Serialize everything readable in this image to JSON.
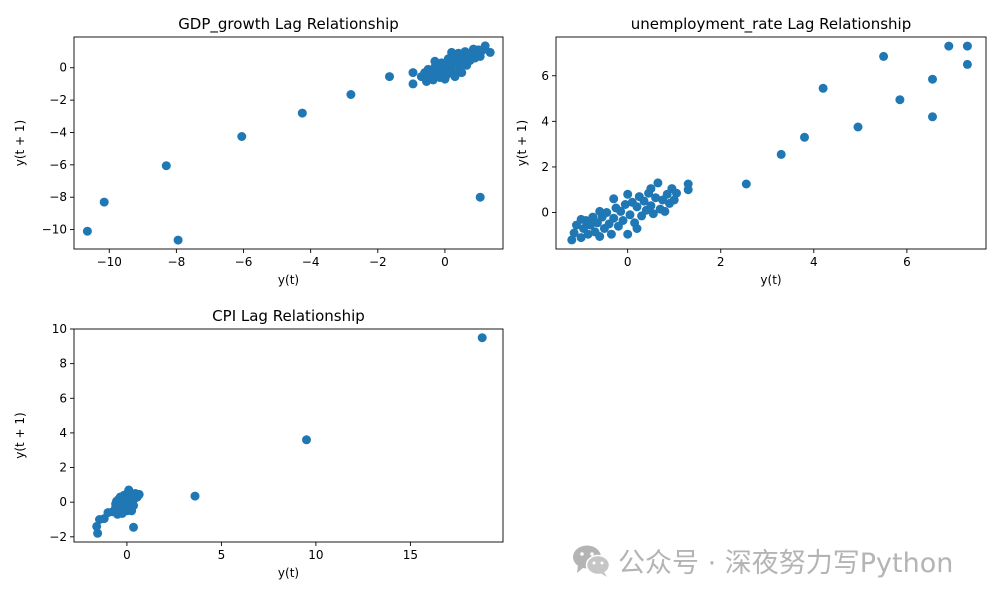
{
  "chart_data": [
    {
      "type": "scatter",
      "title": "GDP_growth Lag Relationship",
      "xlabel": "y(t)",
      "ylabel": "y(t + 1)",
      "xlim": [
        -11.05,
        1.73
      ],
      "ylim": [
        -11.2,
        1.9
      ],
      "xticks": [
        -10,
        -8,
        -6,
        -4,
        -2,
        0
      ],
      "yticks": [
        -10,
        -8,
        -6,
        -4,
        -2,
        0
      ],
      "marker_color": "#1f77b4",
      "points": [
        [
          -10.65,
          -10.1
        ],
        [
          -10.15,
          -8.3
        ],
        [
          -8.3,
          -6.05
        ],
        [
          -7.95,
          -10.65
        ],
        [
          -6.05,
          -4.25
        ],
        [
          -4.25,
          -2.8
        ],
        [
          -2.8,
          -1.65
        ],
        [
          -1.65,
          -0.55
        ],
        [
          -0.95,
          -1.0
        ],
        [
          -0.95,
          -0.3
        ],
        [
          1.05,
          -8.0
        ],
        [
          1.35,
          0.95
        ],
        [
          1.2,
          1.35
        ],
        [
          1.0,
          1.1
        ],
        [
          0.85,
          1.15
        ],
        [
          -0.7,
          -0.55
        ],
        [
          -0.6,
          -0.3
        ],
        [
          -0.55,
          -0.85
        ],
        [
          -0.5,
          -0.1
        ],
        [
          -0.45,
          -0.6
        ],
        [
          -0.4,
          -0.2
        ],
        [
          -0.35,
          -0.75
        ],
        [
          -0.3,
          0.05
        ],
        [
          -0.25,
          -0.4
        ],
        [
          -0.2,
          -0.05
        ],
        [
          -0.15,
          -0.6
        ],
        [
          -0.1,
          0.3
        ],
        [
          -0.05,
          -0.25
        ],
        [
          0.0,
          0.15
        ],
        [
          0.05,
          -0.45
        ],
        [
          0.1,
          0.55
        ],
        [
          0.15,
          0.05
        ],
        [
          0.2,
          -0.2
        ],
        [
          0.25,
          0.45
        ],
        [
          0.3,
          0.7
        ],
        [
          0.35,
          0.2
        ],
        [
          0.4,
          0.9
        ],
        [
          0.45,
          -0.15
        ],
        [
          0.5,
          0.6
        ],
        [
          0.55,
          0.35
        ],
        [
          0.6,
          1.0
        ],
        [
          0.65,
          0.15
        ],
        [
          0.7,
          0.75
        ],
        [
          0.75,
          0.45
        ],
        [
          0.8,
          0.95
        ],
        [
          0.9,
          0.6
        ],
        [
          0.95,
          0.85
        ],
        [
          1.05,
          0.7
        ],
        [
          1.1,
          1.05
        ],
        [
          0.5,
          -0.3
        ],
        [
          -0.3,
          0.4
        ],
        [
          0.0,
          -0.7
        ],
        [
          0.2,
          0.95
        ],
        [
          -0.15,
          0.25
        ],
        [
          0.3,
          -0.55
        ]
      ]
    },
    {
      "type": "scatter",
      "title": "unemployment_rate Lag Relationship",
      "xlabel": "y(t)",
      "ylabel": "y(t + 1)",
      "xlim": [
        -1.54,
        7.7
      ],
      "ylim": [
        -1.6,
        7.7
      ],
      "xticks": [
        0,
        2,
        4,
        6
      ],
      "yticks": [
        0,
        2,
        4,
        6
      ],
      "marker_color": "#1f77b4",
      "points": [
        [
          7.3,
          7.3
        ],
        [
          6.9,
          7.3
        ],
        [
          7.3,
          6.5
        ],
        [
          5.5,
          6.85
        ],
        [
          6.55,
          5.85
        ],
        [
          5.85,
          4.95
        ],
        [
          4.2,
          5.45
        ],
        [
          6.55,
          4.2
        ],
        [
          4.95,
          3.75
        ],
        [
          3.8,
          3.3
        ],
        [
          3.3,
          2.55
        ],
        [
          2.55,
          1.25
        ],
        [
          1.3,
          1.25
        ],
        [
          1.3,
          1.0
        ],
        [
          1.05,
          0.85
        ],
        [
          0.95,
          1.05
        ],
        [
          0.65,
          1.3
        ],
        [
          0.0,
          0.8
        ],
        [
          -1.2,
          -1.2
        ],
        [
          -1.15,
          -0.9
        ],
        [
          -1.1,
          -0.55
        ],
        [
          -1.0,
          -1.1
        ],
        [
          -0.95,
          -0.7
        ],
        [
          -0.9,
          -0.35
        ],
        [
          -0.85,
          -0.95
        ],
        [
          -0.8,
          -0.55
        ],
        [
          -0.75,
          -0.2
        ],
        [
          -0.7,
          -0.85
        ],
        [
          -0.65,
          -0.45
        ],
        [
          -0.6,
          -1.05
        ],
        [
          -0.55,
          -0.2
        ],
        [
          -0.5,
          -0.7
        ],
        [
          -0.45,
          0.0
        ],
        [
          -0.4,
          -0.5
        ],
        [
          -0.35,
          -0.95
        ],
        [
          -0.3,
          -0.25
        ],
        [
          -0.25,
          0.2
        ],
        [
          -0.2,
          -0.6
        ],
        [
          -0.15,
          0.05
        ],
        [
          -0.1,
          -0.35
        ],
        [
          -0.05,
          0.35
        ],
        [
          0.0,
          -0.95
        ],
        [
          0.05,
          -0.1
        ],
        [
          0.1,
          0.45
        ],
        [
          0.15,
          -0.45
        ],
        [
          0.2,
          0.25
        ],
        [
          0.25,
          0.7
        ],
        [
          0.3,
          -0.15
        ],
        [
          0.35,
          0.5
        ],
        [
          0.4,
          0.1
        ],
        [
          0.45,
          0.85
        ],
        [
          0.5,
          0.3
        ],
        [
          0.55,
          -0.05
        ],
        [
          0.6,
          0.65
        ],
        [
          0.7,
          0.15
        ],
        [
          0.75,
          0.55
        ],
        [
          0.8,
          0.05
        ],
        [
          0.85,
          0.8
        ],
        [
          0.9,
          0.4
        ],
        [
          1.0,
          0.55
        ],
        [
          -1.0,
          -0.3
        ],
        [
          -0.6,
          0.05
        ],
        [
          0.2,
          -0.7
        ],
        [
          0.5,
          1.05
        ],
        [
          -0.3,
          0.6
        ]
      ]
    },
    {
      "type": "scatter",
      "title": "CPI Lag Relationship",
      "xlabel": "y(t)",
      "ylabel": "y(t + 1)",
      "xlim": [
        -2.8,
        19.9
      ],
      "ylim": [
        -2.3,
        10.0
      ],
      "xticks": [
        0,
        5,
        10,
        15
      ],
      "yticks": [
        -2,
        0,
        2,
        4,
        6,
        8,
        10
      ],
      "marker_color": "#1f77b4",
      "points": [
        [
          18.8,
          9.5
        ],
        [
          9.5,
          3.6
        ],
        [
          3.6,
          0.35
        ],
        [
          0.35,
          -1.45
        ],
        [
          -1.45,
          -1.0
        ],
        [
          -1.6,
          -1.4
        ],
        [
          -1.55,
          -1.8
        ],
        [
          -1.2,
          -0.95
        ],
        [
          -1.0,
          -0.6
        ],
        [
          -0.75,
          -0.55
        ],
        [
          -0.6,
          -0.3
        ],
        [
          -0.55,
          0.05
        ],
        [
          -0.5,
          -0.7
        ],
        [
          -0.45,
          0.15
        ],
        [
          -0.4,
          -0.45
        ],
        [
          -0.35,
          0.3
        ],
        [
          -0.3,
          -0.2
        ],
        [
          -0.25,
          -0.65
        ],
        [
          -0.2,
          0.05
        ],
        [
          -0.15,
          0.4
        ],
        [
          -0.1,
          -0.35
        ],
        [
          -0.05,
          0.2
        ],
        [
          0.0,
          -0.5
        ],
        [
          0.05,
          0.55
        ],
        [
          0.1,
          -0.1
        ],
        [
          0.15,
          0.3
        ],
        [
          0.2,
          -0.35
        ],
        [
          0.25,
          0.05
        ],
        [
          0.3,
          0.45
        ],
        [
          0.35,
          -0.2
        ],
        [
          0.4,
          0.2
        ],
        [
          0.45,
          0.5
        ],
        [
          0.55,
          0.3
        ],
        [
          0.65,
          0.45
        ],
        [
          0.1,
          0.7
        ],
        [
          -0.2,
          -0.55
        ],
        [
          0.0,
          0.1
        ],
        [
          -0.6,
          -0.1
        ],
        [
          0.25,
          -0.5
        ],
        [
          -0.35,
          0.0
        ]
      ]
    }
  ],
  "watermark": {
    "text": "公众号 · 深夜努力写Python",
    "icon": "wechat-icon"
  }
}
